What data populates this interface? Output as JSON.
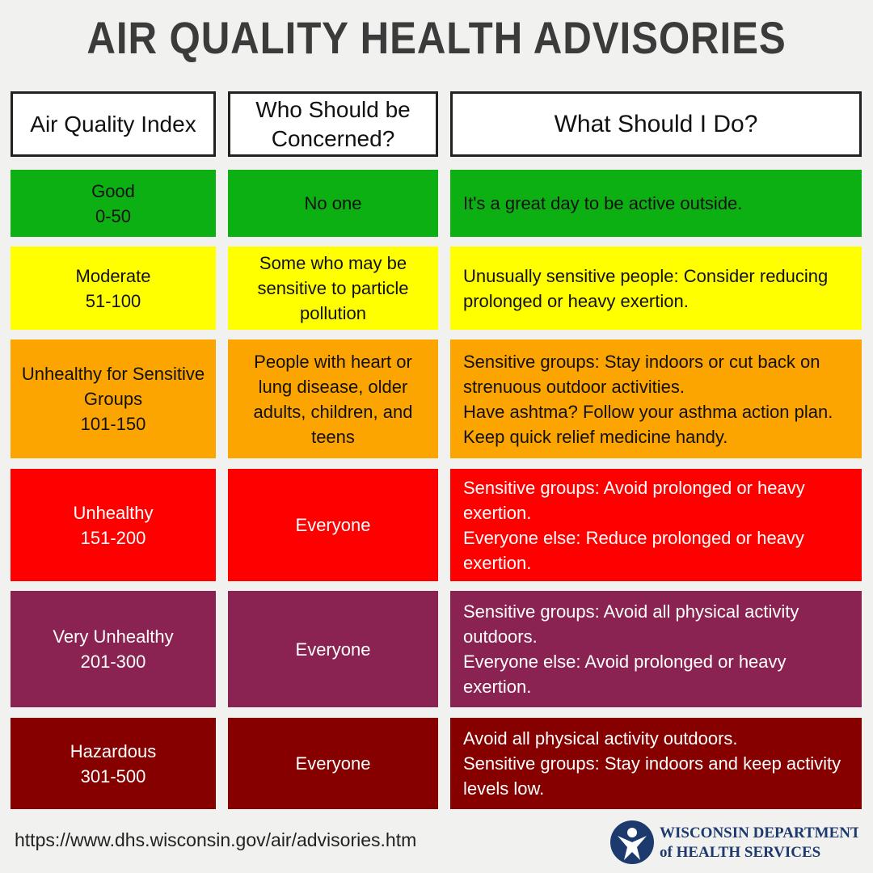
{
  "header": {
    "title": "AIR QUALITY HEALTH ADVISORIES"
  },
  "table": {
    "headers": [
      "Air Quality Index",
      "Who Should be Concerned?",
      "What Should I Do?"
    ],
    "rows": [
      {
        "level": "Good",
        "range": "0-50",
        "who": "No one",
        "what": [
          "It's a great day to be active outside."
        ]
      },
      {
        "level": "Moderate",
        "range": "51-100",
        "who": "Some who may be sensitive to particle pollution",
        "what": [
          "Unusually sensitive people: Consider reducing prolonged or heavy exertion."
        ]
      },
      {
        "level": "Unhealthy for Sensitive Groups",
        "range": "101-150",
        "who": "People with heart or lung disease, older adults, children, and teens",
        "what": [
          "Sensitive groups: Stay indoors or cut back on strenuous outdoor activities.",
          "Have ashtma? Follow your asthma action plan.",
          "Keep quick relief medicine handy."
        ]
      },
      {
        "level": "Unhealthy",
        "range": "151-200",
        "who": "Everyone",
        "what": [
          "Sensitive groups: Avoid prolonged or heavy exertion.",
          "Everyone else: Reduce prolonged or heavy exertion."
        ]
      },
      {
        "level": "Very Unhealthy",
        "range": "201-300",
        "who": "Everyone",
        "what": [
          "Sensitive groups: Avoid all physical activity outdoors.",
          "Everyone else: Avoid prolonged or heavy exertion."
        ]
      },
      {
        "level": "Hazardous",
        "range": "301-500",
        "who": "Everyone",
        "what": [
          "Avoid all physical activity outdoors.",
          "Sensitive groups: Stay indoors and keep activity levels low."
        ]
      }
    ]
  },
  "footer": {
    "url": "https://www.dhs.wisconsin.gov/air/advisories.htm",
    "logo": [
      "WISCONSIN DEPARTMENT",
      "of HEALTH SERVICES"
    ]
  }
}
